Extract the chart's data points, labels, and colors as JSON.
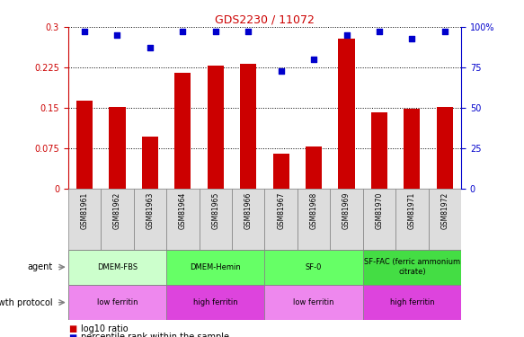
{
  "title": "GDS2230 / 11072",
  "samples": [
    "GSM81961",
    "GSM81962",
    "GSM81963",
    "GSM81964",
    "GSM81965",
    "GSM81966",
    "GSM81967",
    "GSM81968",
    "GSM81969",
    "GSM81970",
    "GSM81971",
    "GSM81972"
  ],
  "log10_ratio": [
    0.163,
    0.152,
    0.096,
    0.215,
    0.228,
    0.231,
    0.065,
    0.078,
    0.278,
    0.142,
    0.148,
    0.152
  ],
  "percentile_rank": [
    97,
    95,
    87,
    97,
    97,
    97,
    73,
    80,
    95,
    97,
    93,
    97
  ],
  "ylim_left": [
    0,
    0.3
  ],
  "ylim_right": [
    0,
    100
  ],
  "yticks_left": [
    0,
    0.075,
    0.15,
    0.225,
    0.3
  ],
  "yticks_right": [
    0,
    25,
    50,
    75,
    100
  ],
  "bar_color": "#cc0000",
  "dot_color": "#0000cc",
  "agent_groups": [
    {
      "label": "DMEM-FBS",
      "start": 0,
      "end": 3,
      "color": "#ccffcc"
    },
    {
      "label": "DMEM-Hemin",
      "start": 3,
      "end": 6,
      "color": "#66ff66"
    },
    {
      "label": "SF-0",
      "start": 6,
      "end": 9,
      "color": "#66ff66"
    },
    {
      "label": "SF-FAC (ferric ammonium\ncitrate)",
      "start": 9,
      "end": 12,
      "color": "#44dd44"
    }
  ],
  "growth_groups": [
    {
      "label": "low ferritin",
      "start": 0,
      "end": 3,
      "color": "#ee88ee"
    },
    {
      "label": "high ferritin",
      "start": 3,
      "end": 6,
      "color": "#dd44dd"
    },
    {
      "label": "low ferritin",
      "start": 6,
      "end": 9,
      "color": "#ee88ee"
    },
    {
      "label": "high ferritin",
      "start": 9,
      "end": 12,
      "color": "#dd44dd"
    }
  ],
  "agent_label": "agent",
  "growth_label": "growth protocol",
  "legend_red": "log10 ratio",
  "legend_blue": "percentile rank within the sample",
  "bar_width": 0.5,
  "title_color": "#cc0000",
  "left_axis_color": "#cc0000",
  "right_axis_color": "#0000cc",
  "sample_bg": "#dddddd"
}
